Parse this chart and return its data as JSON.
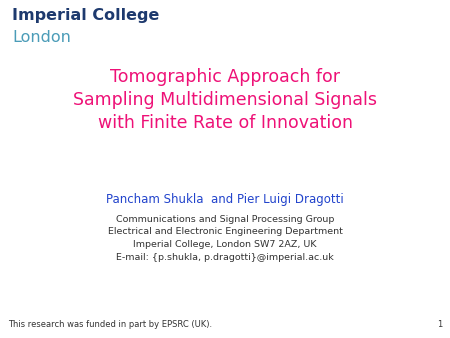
{
  "background_color": "#ffffff",
  "logo_imperial_text": "Imperial College",
  "logo_imperial_color": "#1e3a6e",
  "logo_london_text": "London",
  "logo_london_color": "#4b9cb8",
  "title_line1": "Tomographic Approach for",
  "title_line2": "Sampling Multidimensional Signals",
  "title_line3": "with Finite Rate of Innovation",
  "title_color": "#ee1177",
  "authors_text": "Pancham Shukla  and Pier Luigi Dragotti",
  "authors_color": "#2244cc",
  "affil_line1": "Communications and Signal Processing Group",
  "affil_line2": "Electrical and Electronic Engineering Department",
  "affil_line3": "Imperial College, London SW7 2AZ, UK",
  "affil_line4": "E-mail: {p.shukla, p.dragotti}@imperial.ac.uk",
  "affil_color": "#333333",
  "footer_text": "This research was funded in part by EPSRC (UK).",
  "footer_color": "#333333",
  "page_number": "1",
  "page_color": "#333333",
  "logo_imperial_fontsize": 11.5,
  "logo_london_fontsize": 11.5,
  "title_fontsize": 12.5,
  "authors_fontsize": 8.5,
  "affil_fontsize": 6.8,
  "footer_fontsize": 6.0
}
